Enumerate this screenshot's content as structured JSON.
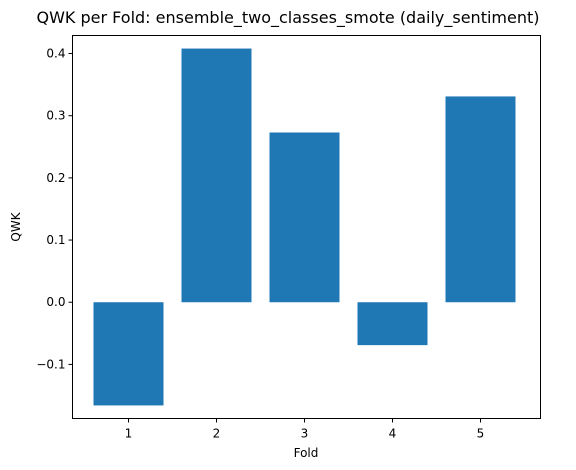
{
  "chart_data": {
    "type": "bar",
    "title": "QWK per Fold: ensemble_two_classes_smote (daily_sentiment)",
    "xlabel": "Fold",
    "ylabel": "QWK",
    "categories": [
      "1",
      "2",
      "3",
      "4",
      "5"
    ],
    "values": [
      -0.166,
      0.408,
      0.273,
      -0.069,
      0.331
    ],
    "ylim": [
      -0.187,
      0.429
    ],
    "yticks": [
      -0.1,
      0.0,
      0.1,
      0.2,
      0.3,
      0.4
    ],
    "ytick_labels": [
      "−0.1",
      "0.0",
      "0.1",
      "0.2",
      "0.3",
      "0.4"
    ],
    "bar_color": "#1f77b4",
    "grid": false,
    "legend": "none"
  }
}
